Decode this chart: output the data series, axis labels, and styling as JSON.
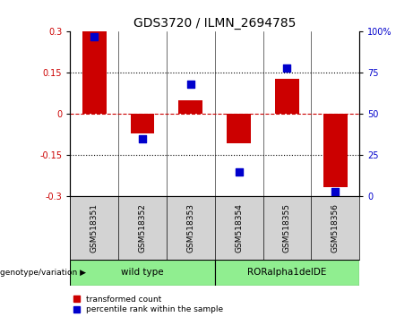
{
  "title": "GDS3720 / ILMN_2694785",
  "samples": [
    "GSM518351",
    "GSM518352",
    "GSM518353",
    "GSM518354",
    "GSM518355",
    "GSM518356"
  ],
  "red_values": [
    0.3,
    -0.07,
    0.05,
    -0.105,
    0.13,
    -0.265
  ],
  "blue_values": [
    97,
    35,
    68,
    15,
    78,
    3
  ],
  "ylim_left": [
    -0.3,
    0.3
  ],
  "ylim_right": [
    0,
    100
  ],
  "yticks_left": [
    -0.3,
    -0.15,
    0,
    0.15,
    0.3
  ],
  "ytick_labels_left": [
    "-0.3",
    "-0.15",
    "0",
    "0.15",
    "0.3"
  ],
  "yticks_right": [
    0,
    25,
    50,
    75,
    100
  ],
  "ytick_labels_right": [
    "0",
    "25",
    "50",
    "75",
    "100%"
  ],
  "group_bg_color": "#90EE90",
  "sample_bg_color": "#d3d3d3",
  "red_color": "#cc0000",
  "blue_color": "#0000cc",
  "bar_width": 0.5,
  "dot_size": 40,
  "hline_color": "#cc0000",
  "dotted_color": "black",
  "legend_red": "transformed count",
  "legend_blue": "percentile rank within the sample",
  "genotype_label": "genotype/variation",
  "title_fontsize": 10,
  "tick_fontsize": 7,
  "label_fontsize": 7,
  "group_label_wt": "wild type",
  "group_label_ro": "RORalpha1delDE"
}
